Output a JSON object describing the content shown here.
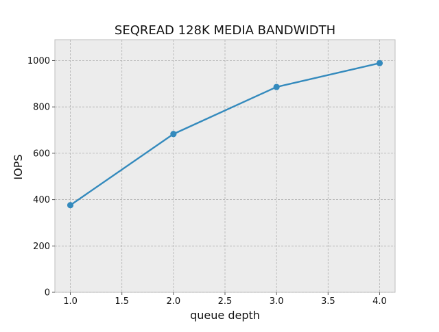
{
  "chart_data": {
    "type": "line",
    "title": "SEQREAD 128K MEDIA BANDWIDTH",
    "xlabel": "queue depth",
    "ylabel": "IOPS",
    "xlim": [
      0.85,
      4.15
    ],
    "ylim": [
      0,
      1090
    ],
    "xticks": [
      1.0,
      1.5,
      2.0,
      2.5,
      3.0,
      3.5,
      4.0
    ],
    "xtick_labels": [
      "1.0",
      "1.5",
      "2.0",
      "2.5",
      "3.0",
      "3.5",
      "4.0"
    ],
    "yticks": [
      0,
      200,
      400,
      600,
      800,
      1000
    ],
    "ytick_labels": [
      "0",
      "200",
      "400",
      "600",
      "800",
      "1000"
    ],
    "grid": true,
    "legend": "none",
    "series": [
      {
        "color": "#348abd",
        "x": [
          1.0,
          2.0,
          3.0,
          4.0
        ],
        "y": [
          376,
          683,
          886,
          989
        ]
      }
    ]
  }
}
